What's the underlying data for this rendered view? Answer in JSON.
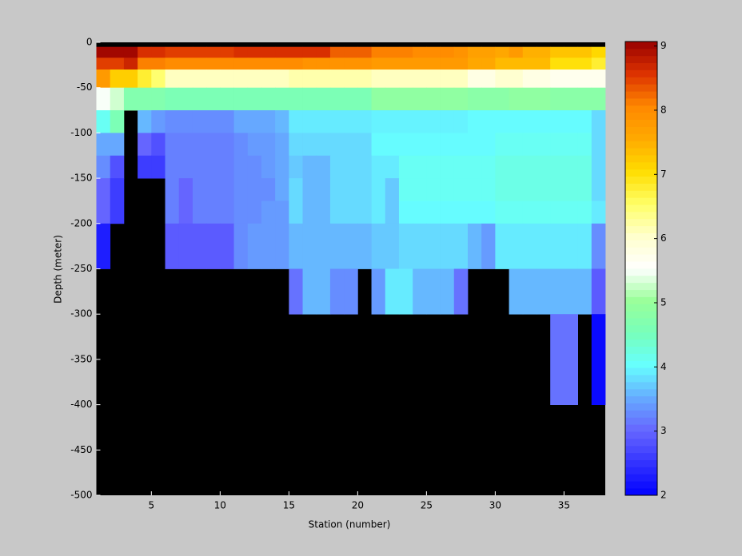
{
  "chart_data": {
    "type": "heatmap",
    "x_label": "Station (number)",
    "y_label": "Depth (meter)",
    "x": [
      1,
      2,
      3,
      4,
      5,
      6,
      7,
      8,
      9,
      10,
      11,
      12,
      13,
      14,
      15,
      16,
      17,
      18,
      19,
      20,
      21,
      22,
      23,
      24,
      25,
      26,
      27,
      28,
      29,
      30,
      31,
      32,
      33,
      34,
      35,
      36,
      37,
      38
    ],
    "y": [
      0,
      -5,
      -17,
      -30,
      -50,
      -75,
      -100,
      -125,
      -150,
      -175,
      -200,
      -250,
      -300,
      -400,
      -500
    ],
    "z": [
      [
        null,
        null,
        null,
        null,
        null,
        null,
        null,
        null,
        null,
        null,
        null,
        null,
        null,
        null,
        null,
        null,
        null,
        null,
        null,
        null,
        null,
        null,
        null,
        null,
        null,
        null,
        null,
        null,
        null,
        null,
        null,
        null,
        null,
        null,
        null,
        null,
        null
      ],
      [
        9.0,
        9.0,
        9.0,
        8.6,
        8.6,
        8.5,
        8.5,
        8.5,
        8.5,
        8.5,
        8.6,
        8.6,
        8.6,
        8.6,
        8.6,
        8.6,
        8.6,
        8.3,
        8.3,
        8.3,
        8.1,
        8.1,
        8.1,
        8.0,
        8.0,
        8.0,
        7.9,
        7.7,
        7.7,
        7.6,
        7.8,
        7.5,
        7.5,
        7.3,
        7.3,
        7.3,
        7.1
      ],
      [
        8.5,
        8.5,
        8.7,
        8.1,
        8.1,
        8.0,
        8.0,
        8.0,
        8.0,
        8.0,
        8.0,
        8.0,
        8.0,
        8.0,
        8.0,
        7.9,
        7.9,
        7.9,
        7.9,
        7.9,
        7.8,
        7.8,
        7.8,
        7.8,
        7.8,
        7.8,
        7.8,
        7.6,
        7.6,
        7.4,
        7.4,
        7.4,
        7.4,
        7.0,
        7.0,
        7.0,
        6.8
      ],
      [
        7.8,
        7.2,
        7.2,
        6.8,
        6.5,
        6.1,
        6.1,
        6.1,
        6.1,
        6.1,
        6.1,
        6.1,
        6.1,
        6.1,
        6.2,
        6.2,
        6.2,
        6.2,
        6.2,
        6.2,
        6.1,
        6.1,
        6.1,
        6.1,
        6.1,
        6.1,
        6.1,
        5.8,
        5.8,
        6.0,
        6.0,
        5.8,
        5.8,
        5.7,
        5.7,
        5.7,
        5.7
      ],
      [
        5.5,
        5.3,
        4.7,
        4.7,
        4.7,
        4.6,
        4.6,
        4.6,
        4.6,
        4.6,
        4.6,
        4.6,
        4.6,
        4.6,
        4.6,
        4.6,
        4.6,
        4.6,
        4.6,
        4.6,
        4.9,
        4.9,
        4.9,
        4.9,
        4.9,
        4.9,
        4.9,
        4.8,
        4.8,
        4.8,
        4.9,
        4.9,
        4.9,
        4.8,
        4.8,
        4.8,
        4.8
      ],
      [
        4.1,
        4.6,
        null,
        3.6,
        3.4,
        3.3,
        3.3,
        3.3,
        3.3,
        3.3,
        3.5,
        3.5,
        3.5,
        3.6,
        3.9,
        3.9,
        3.9,
        3.9,
        3.9,
        3.9,
        3.95,
        3.95,
        3.95,
        3.95,
        3.95,
        3.95,
        3.95,
        4.0,
        4.0,
        4.0,
        4.0,
        4.0,
        4.0,
        4.0,
        4.0,
        4.0,
        3.8
      ],
      [
        3.5,
        3.5,
        null,
        3.0,
        2.8,
        3.2,
        3.2,
        3.2,
        3.2,
        3.2,
        3.3,
        3.4,
        3.4,
        3.5,
        3.8,
        3.8,
        3.8,
        3.8,
        3.8,
        3.8,
        4.0,
        4.0,
        4.0,
        4.0,
        4.0,
        4.0,
        4.0,
        4.0,
        4.0,
        4.1,
        4.1,
        4.1,
        4.1,
        4.1,
        4.1,
        4.1,
        3.8
      ],
      [
        3.3,
        2.8,
        null,
        2.6,
        2.6,
        3.2,
        3.2,
        3.2,
        3.2,
        3.2,
        3.3,
        3.3,
        3.4,
        3.5,
        3.7,
        3.6,
        3.6,
        3.8,
        3.8,
        3.8,
        3.9,
        3.9,
        4.1,
        4.1,
        4.1,
        4.1,
        4.1,
        4.1,
        4.1,
        4.2,
        4.2,
        4.2,
        4.2,
        4.2,
        4.2,
        4.2,
        3.8
      ],
      [
        3.0,
        2.6,
        null,
        null,
        null,
        3.2,
        3.0,
        3.2,
        3.2,
        3.2,
        3.3,
        3.3,
        3.3,
        3.5,
        3.8,
        3.6,
        3.6,
        3.8,
        3.8,
        3.8,
        3.9,
        3.7,
        4.1,
        4.1,
        4.1,
        4.1,
        4.1,
        4.1,
        4.1,
        4.2,
        4.2,
        4.2,
        4.2,
        4.2,
        4.2,
        4.2,
        3.8
      ],
      [
        3.0,
        2.6,
        null,
        null,
        null,
        3.2,
        3.0,
        3.2,
        3.2,
        3.2,
        3.3,
        3.3,
        3.4,
        3.4,
        3.8,
        3.6,
        3.6,
        3.8,
        3.8,
        3.8,
        3.9,
        3.7,
        4.0,
        4.0,
        4.0,
        4.0,
        4.0,
        4.0,
        4.0,
        4.1,
        4.1,
        4.1,
        4.1,
        4.1,
        4.1,
        4.1,
        3.9
      ],
      [
        2.3,
        null,
        null,
        null,
        null,
        2.9,
        2.9,
        2.9,
        2.9,
        2.9,
        3.3,
        3.4,
        3.4,
        3.4,
        3.6,
        3.6,
        3.6,
        3.6,
        3.6,
        3.6,
        3.7,
        3.7,
        3.8,
        3.8,
        3.8,
        3.8,
        3.8,
        3.6,
        3.4,
        3.9,
        3.9,
        3.9,
        3.9,
        3.9,
        3.9,
        3.9,
        3.3
      ],
      [
        null,
        null,
        null,
        null,
        null,
        null,
        null,
        null,
        null,
        null,
        null,
        null,
        null,
        null,
        3.1,
        3.6,
        3.6,
        3.3,
        3.3,
        null,
        3.4,
        3.9,
        3.9,
        3.6,
        3.6,
        3.6,
        3.1,
        null,
        null,
        null,
        3.6,
        3.6,
        3.6,
        3.6,
        3.6,
        3.6,
        2.9
      ],
      [
        null,
        null,
        null,
        null,
        null,
        null,
        null,
        null,
        null,
        null,
        null,
        null,
        null,
        null,
        null,
        null,
        null,
        null,
        null,
        null,
        null,
        null,
        null,
        null,
        null,
        null,
        null,
        null,
        null,
        null,
        null,
        null,
        null,
        3.1,
        3.1,
        null,
        2.1
      ],
      [
        null,
        null,
        null,
        null,
        null,
        null,
        null,
        null,
        null,
        null,
        null,
        null,
        null,
        null,
        null,
        null,
        null,
        null,
        null,
        null,
        null,
        null,
        null,
        null,
        null,
        null,
        null,
        null,
        null,
        null,
        null,
        null,
        null,
        null,
        null,
        null,
        null
      ]
    ],
    "xlim": [
      1,
      38
    ],
    "ylim": [
      -500,
      0
    ],
    "xticks": [
      5,
      10,
      15,
      20,
      25,
      30,
      35
    ],
    "yticks": [
      -500,
      -450,
      -400,
      -350,
      -300,
      -250,
      -200,
      -150,
      -100,
      -50,
      0
    ],
    "clim": [
      2,
      9.07
    ],
    "colorbar_ticks": [
      2,
      3,
      4,
      5,
      6,
      7,
      8,
      9
    ],
    "colormap": [
      "#0000ff",
      "#3333ff",
      "#6666ff",
      "#66aaff",
      "#66ffff",
      "#77ffbb",
      "#99ff99",
      "#ffffff",
      "#ffffcc",
      "#ffff66",
      "#ffdd00",
      "#ffaa00",
      "#ff8800",
      "#dd3300",
      "#990000"
    ],
    "background": "#000000"
  }
}
